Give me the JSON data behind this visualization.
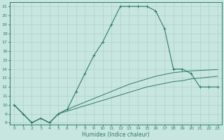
{
  "xlabel": "Humidex (Indice chaleur)",
  "bg_color": "#c8e6e0",
  "line_color": "#2e7b6c",
  "grid_color": "#b0d0c8",
  "xlim": [
    -0.5,
    23.5
  ],
  "ylim": [
    7.8,
    21.5
  ],
  "yticks": [
    8,
    9,
    10,
    11,
    12,
    13,
    14,
    15,
    16,
    17,
    18,
    19,
    20,
    21
  ],
  "xticks": [
    0,
    1,
    2,
    3,
    4,
    5,
    6,
    7,
    8,
    9,
    10,
    11,
    12,
    13,
    14,
    15,
    16,
    17,
    18,
    19,
    20,
    21,
    22,
    23
  ],
  "curve1_x": [
    0,
    1,
    2,
    3,
    4,
    5,
    6,
    7,
    8,
    9,
    10,
    11,
    12,
    13,
    14,
    15,
    16,
    17,
    18,
    19,
    20,
    21,
    22,
    23
  ],
  "curve1_y": [
    10.0,
    9.0,
    8.0,
    8.5,
    8.0,
    9.0,
    9.5,
    11.5,
    13.5,
    15.5,
    17.0,
    19.0,
    21.0,
    21.0,
    21.0,
    21.0,
    20.5,
    18.5,
    14.0,
    14.0,
    13.5,
    12.0,
    12.0,
    12.0
  ],
  "curve2_x": [
    0,
    1,
    2,
    3,
    4,
    5,
    6,
    7,
    8,
    9,
    10,
    11,
    12,
    13,
    14,
    15,
    16,
    17,
    18,
    19,
    20,
    21,
    22,
    23
  ],
  "curve2_y": [
    10.0,
    9.0,
    8.0,
    8.5,
    8.0,
    9.0,
    9.3,
    9.6,
    9.9,
    10.2,
    10.5,
    10.8,
    11.1,
    11.4,
    11.7,
    12.0,
    12.2,
    12.4,
    12.6,
    12.7,
    12.9,
    13.0,
    13.1,
    13.2
  ],
  "curve3_x": [
    0,
    1,
    2,
    3,
    4,
    5,
    6,
    7,
    8,
    9,
    10,
    11,
    12,
    13,
    14,
    15,
    16,
    17,
    18,
    19,
    20,
    21,
    22,
    23
  ],
  "curve3_y": [
    10.0,
    9.0,
    8.0,
    8.5,
    8.0,
    9.0,
    9.5,
    9.9,
    10.3,
    10.7,
    11.1,
    11.5,
    11.9,
    12.3,
    12.6,
    12.9,
    13.2,
    13.4,
    13.6,
    13.7,
    13.8,
    13.85,
    13.9,
    13.95
  ]
}
